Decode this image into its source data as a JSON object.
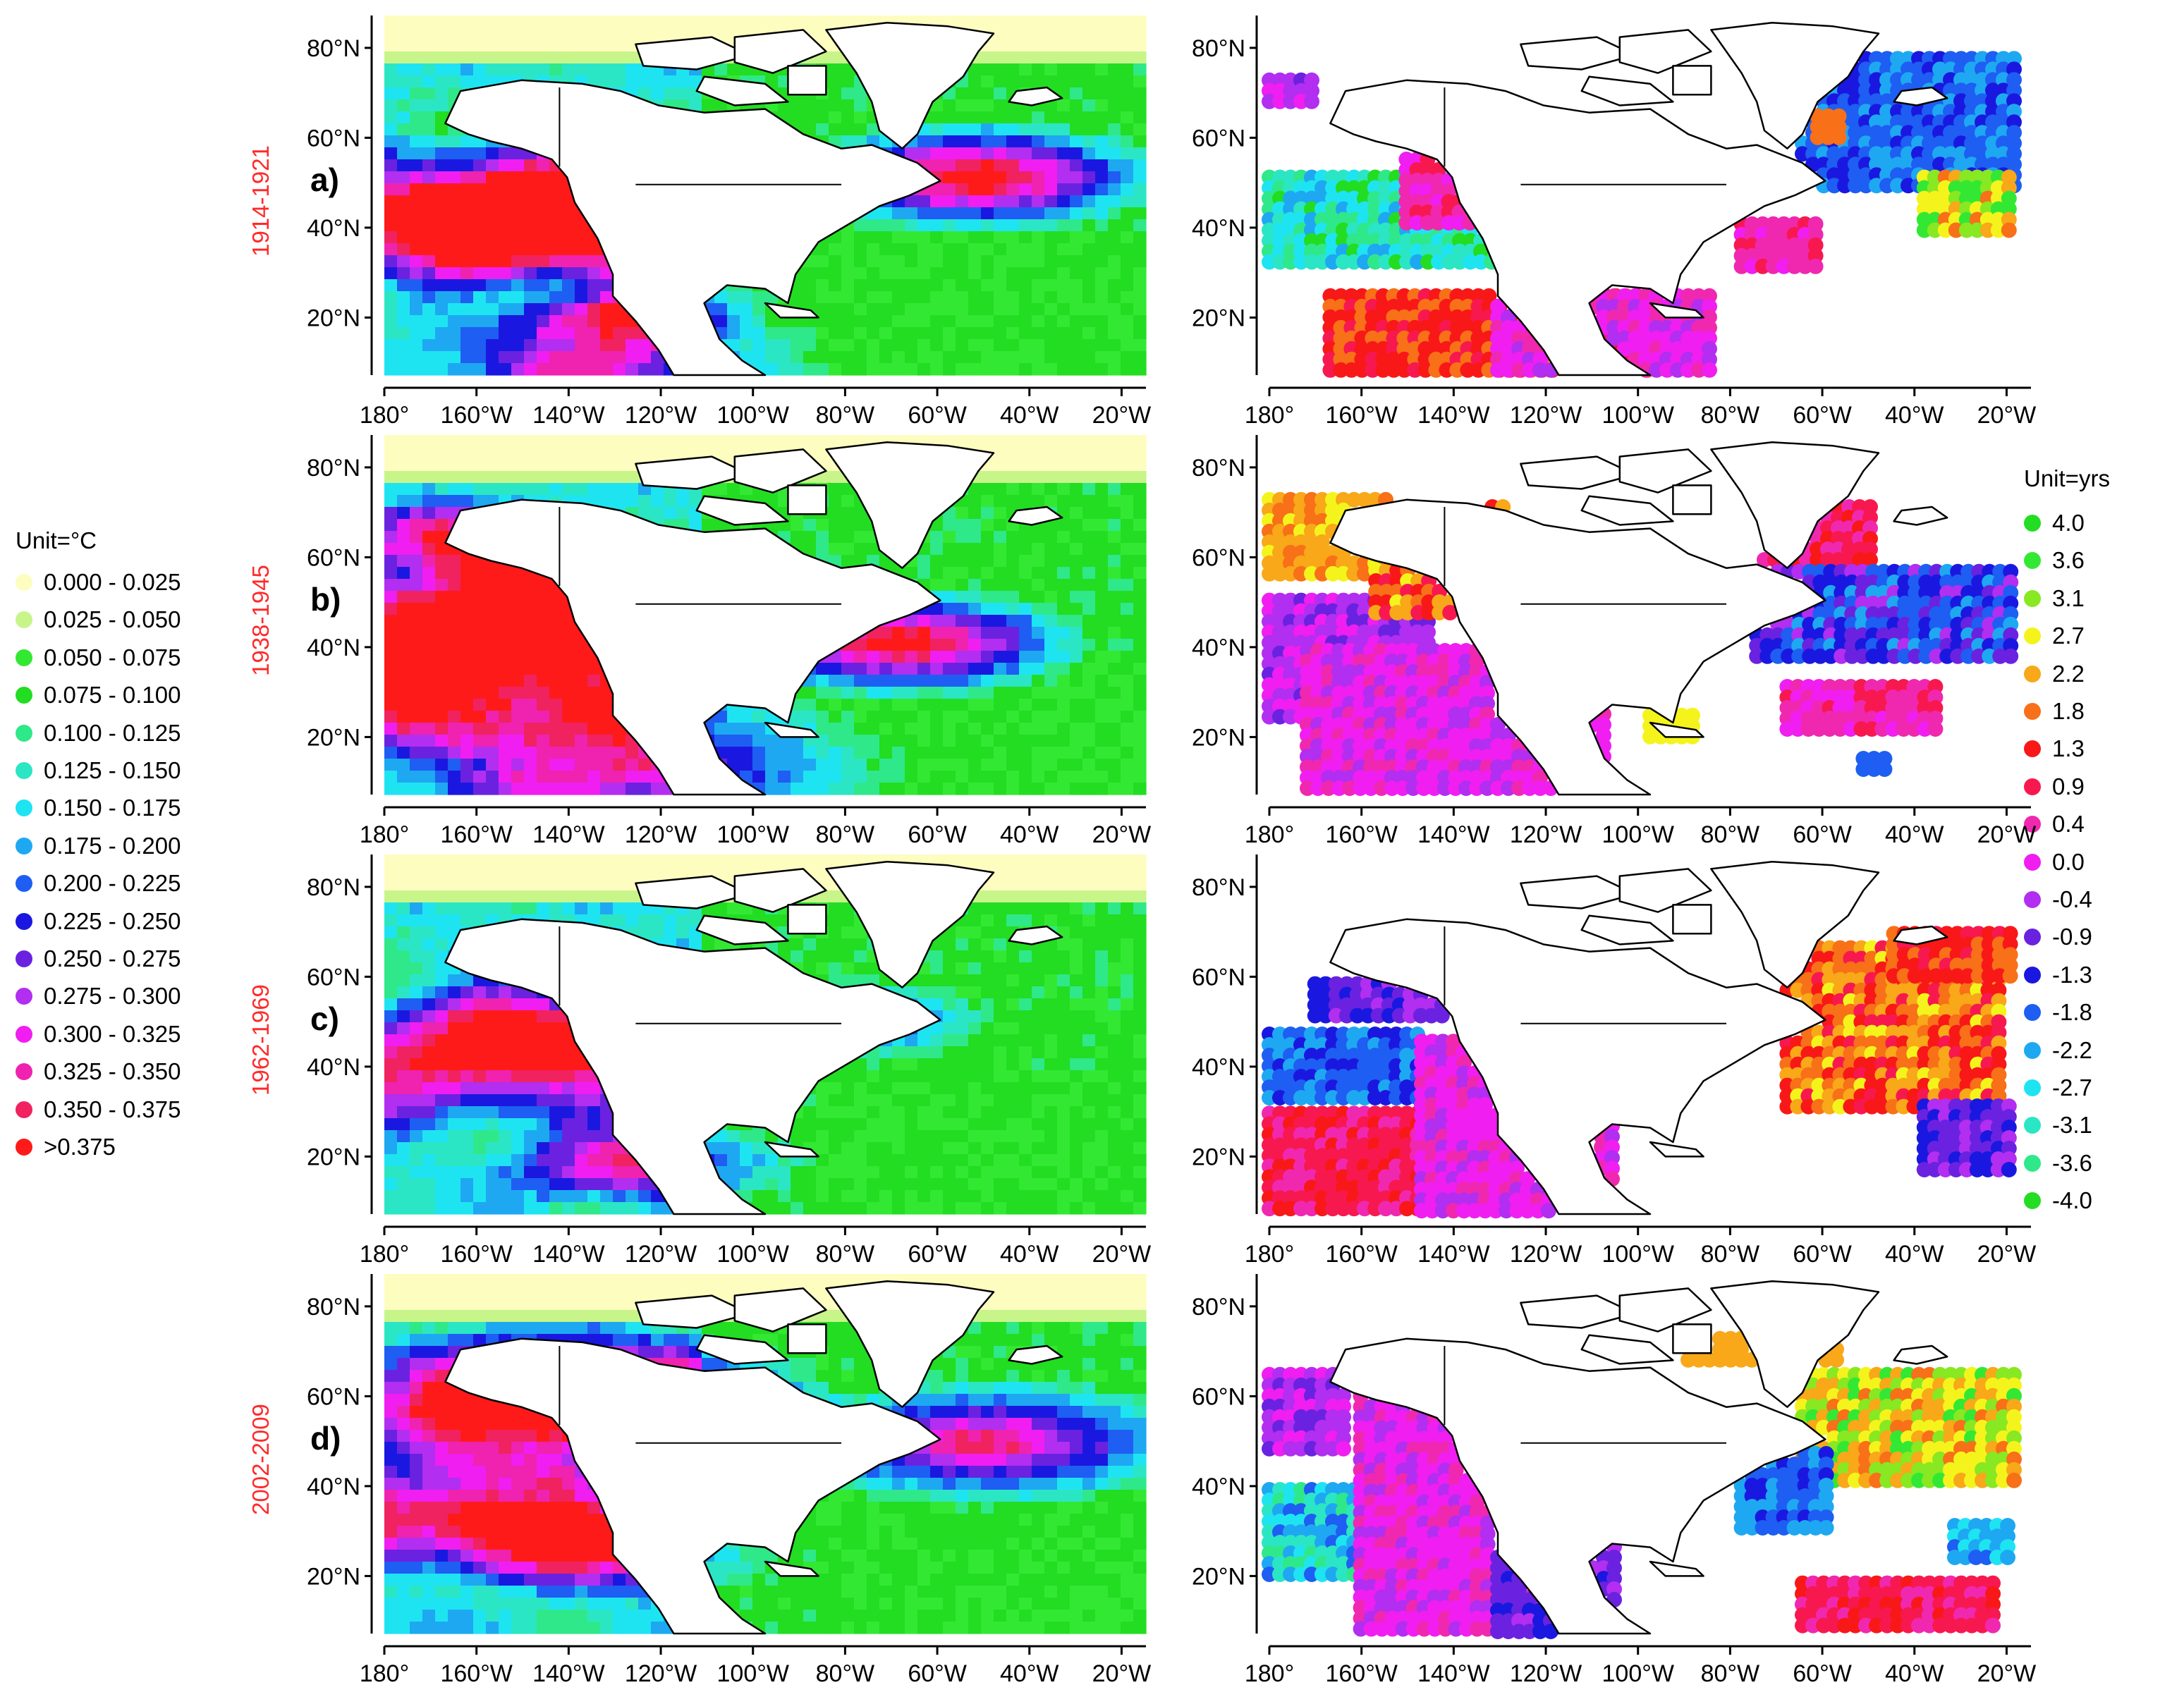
{
  "panels": [
    {
      "letter": "a)",
      "period": "1914-1921"
    },
    {
      "letter": "b)",
      "period": "1938-1945"
    },
    {
      "letter": "c)",
      "period": "1962-1969"
    },
    {
      "letter": "d)",
      "period": "2002-2009"
    }
  ],
  "axes": {
    "lat_ticks": [
      "20°N",
      "40°N",
      "60°N",
      "80°N"
    ],
    "lon_ticks": [
      "180°",
      "160°W",
      "140°W",
      "120°W",
      "100°W",
      "80°W",
      "60°W",
      "40°W",
      "20°W"
    ]
  },
  "legend_left": {
    "title": "Unit=°C",
    "items": [
      {
        "label": "0.000 - 0.025",
        "color": "#fdfdc0"
      },
      {
        "label": "0.025 - 0.050",
        "color": "#c8f58a"
      },
      {
        "label": "0.050 - 0.075",
        "color": "#33e833"
      },
      {
        "label": "0.075 - 0.100",
        "color": "#22dd22"
      },
      {
        "label": "0.100 - 0.125",
        "color": "#2fe88a"
      },
      {
        "label": "0.125 - 0.150",
        "color": "#2be6c4"
      },
      {
        "label": "0.150 - 0.175",
        "color": "#1ee4f2"
      },
      {
        "label": "0.175 - 0.200",
        "color": "#1ea8f2"
      },
      {
        "label": "0.200 - 0.225",
        "color": "#1e5ef2"
      },
      {
        "label": "0.225 - 0.250",
        "color": "#1a18e0"
      },
      {
        "label": "0.250 - 0.275",
        "color": "#6a22e0"
      },
      {
        "label": "0.275 - 0.300",
        "color": "#b22ef0"
      },
      {
        "label": "0.300 - 0.325",
        "color": "#f01ef0"
      },
      {
        "label": "0.325 - 0.350",
        "color": "#f022b0"
      },
      {
        "label": "0.350 - 0.375",
        "color": "#f02260"
      },
      {
        "label": ">0.375",
        "color": "#ff1a1a"
      }
    ]
  },
  "legend_right": {
    "title": "Unit=yrs",
    "items": [
      {
        "label": "4.0",
        "color": "#22dd22"
      },
      {
        "label": "3.6",
        "color": "#33e833"
      },
      {
        "label": "3.1",
        "color": "#88e822"
      },
      {
        "label": "2.7",
        "color": "#f4f41c"
      },
      {
        "label": "2.2",
        "color": "#f8a818"
      },
      {
        "label": "1.8",
        "color": "#f87018"
      },
      {
        "label": "1.3",
        "color": "#f81818"
      },
      {
        "label": "0.9",
        "color": "#f81850"
      },
      {
        "label": "0.4",
        "color": "#f028b0"
      },
      {
        "label": "0.0",
        "color": "#f01ef0"
      },
      {
        "label": "-0.4",
        "color": "#b22ef0"
      },
      {
        "label": "-0.9",
        "color": "#6a22e0"
      },
      {
        "label": "-1.3",
        "color": "#1a18e0"
      },
      {
        "label": "-1.8",
        "color": "#1e5ef2"
      },
      {
        "label": "-2.2",
        "color": "#1ea8f2"
      },
      {
        "label": "-2.7",
        "color": "#1ee4f2"
      },
      {
        "label": "-3.1",
        "color": "#2be6c4"
      },
      {
        "label": "-3.6",
        "color": "#2fe88a"
      },
      {
        "label": "-4.0",
        "color": "#22dd22"
      }
    ]
  }
}
